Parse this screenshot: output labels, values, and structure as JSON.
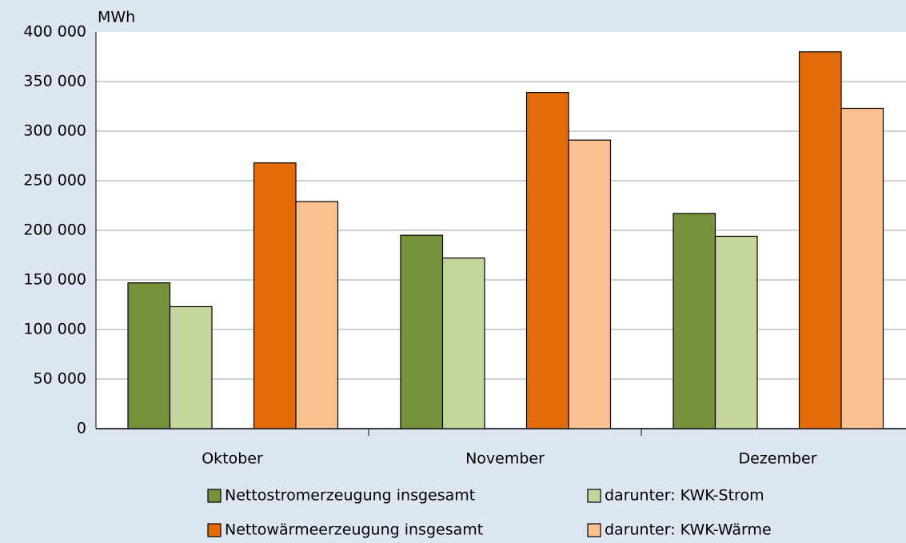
{
  "chart_data": {
    "type": "bar",
    "y_label": "MWh",
    "categories": [
      "Oktober",
      "November",
      "Dezember"
    ],
    "series": [
      {
        "name": "Nettostromerzeugung insgesamt",
        "color": "#76923c",
        "values": [
          147000,
          195000,
          217000
        ]
      },
      {
        "name": "darunter: KWK-Strom",
        "color": "#c3d69b",
        "values": [
          123000,
          172000,
          194000
        ]
      },
      {
        "name": "Nettowärmeerzeugung insgesamt",
        "color": "#e36c0a",
        "values": [
          268000,
          339000,
          380000
        ]
      },
      {
        "name": "darunter: KWK-Wärme",
        "color": "#fac090",
        "values": [
          229000,
          291000,
          323000
        ]
      }
    ],
    "ylim": [
      0,
      400000
    ],
    "yticks": [
      0,
      {
        "value": 50000,
        "label": "50 000"
      },
      {
        "value": 100000,
        "label": "100 000"
      },
      {
        "value": 150000,
        "label": "150 000"
      },
      {
        "value": 200000,
        "label": "200 000"
      },
      {
        "value": 250000,
        "label": "250 000"
      },
      {
        "value": 300000,
        "label": "300 000"
      },
      {
        "value": 350000,
        "label": "350 000"
      },
      {
        "value": 400000,
        "label": "400 000"
      }
    ],
    "grid": true
  }
}
